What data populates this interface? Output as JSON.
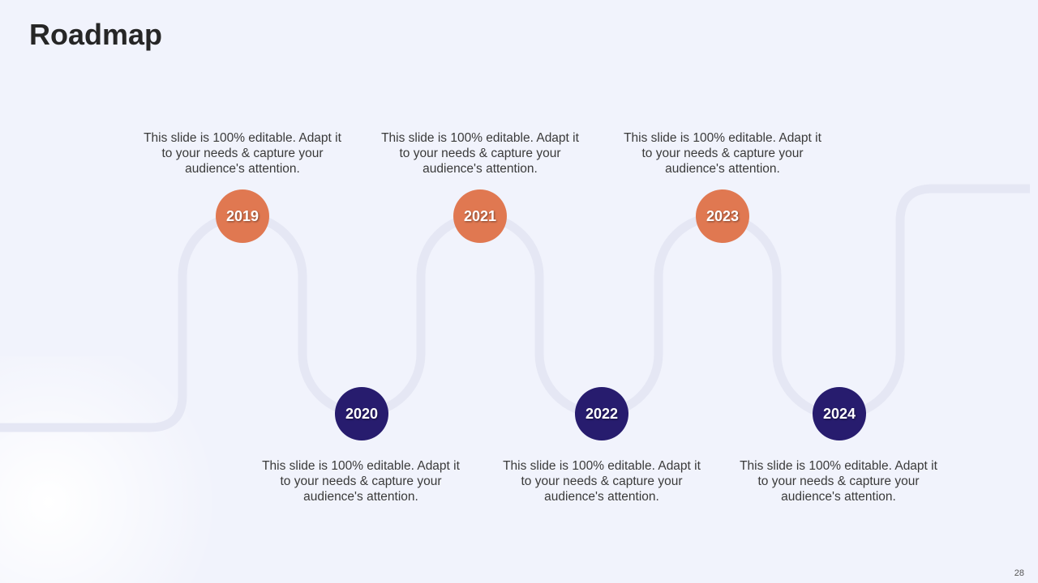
{
  "title": "Roadmap",
  "page_number": "28",
  "colors": {
    "accent_top": "#e07851",
    "accent_bottom": "#271c6e",
    "path": "#e5e7f4"
  },
  "milestones": [
    {
      "year": "2019",
      "text": "This slide is 100% editable. Adapt it to your needs & capture your audience's attention."
    },
    {
      "year": "2020",
      "text": "This slide is 100% editable. Adapt it to your needs & capture your audience's attention."
    },
    {
      "year": "2021",
      "text": "This slide is 100% editable. Adapt it to your needs & capture your audience's attention."
    },
    {
      "year": "2022",
      "text": "This slide is 100% editable. Adapt it to your needs & capture your audience's attention."
    },
    {
      "year": "2023",
      "text": "This slide is 100% editable. Adapt it to your needs & capture your audience's attention."
    },
    {
      "year": "2024",
      "text": "This slide is 100% editable. Adapt it to your needs & capture your audience's attention."
    }
  ]
}
